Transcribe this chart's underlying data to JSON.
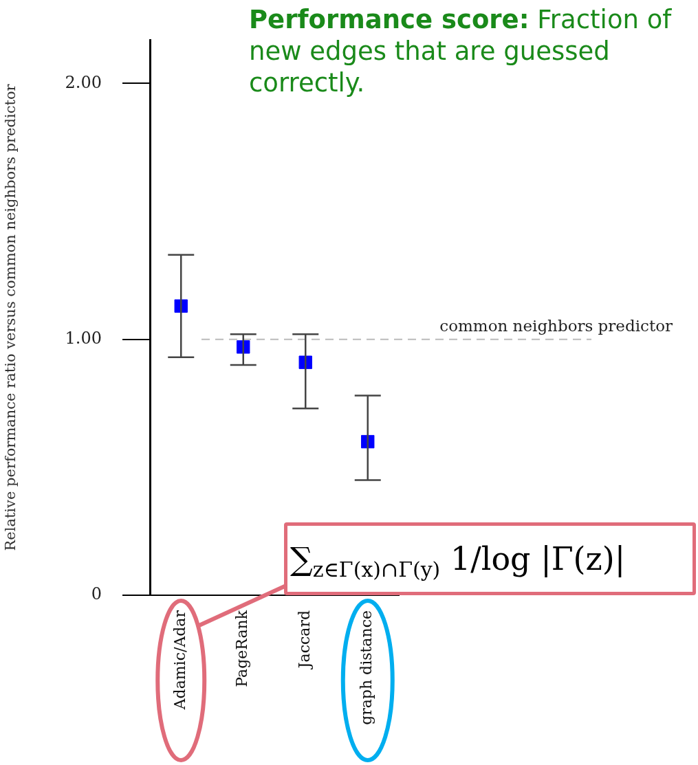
{
  "chart_data": {
    "type": "scatter",
    "categories": [
      "Adamic/Adar",
      "PageRank",
      "Jaccard",
      "graph distance"
    ],
    "values": [
      1.13,
      0.97,
      0.91,
      0.6
    ],
    "errors": [
      [
        0.93,
        1.33
      ],
      [
        0.9,
        1.02
      ],
      [
        0.73,
        1.02
      ],
      [
        0.45,
        0.78
      ]
    ],
    "color": "#0000ff",
    "marker": "square",
    "ylabel": "Relative performance ratio versus common neighbors predictor",
    "ylim": [
      0,
      2.17
    ],
    "yticks": [
      {
        "value": 0,
        "label": "0"
      },
      {
        "value": 1,
        "label": "1.00"
      },
      {
        "value": 2,
        "label": "2.00"
      }
    ],
    "ref_lines": [
      {
        "axis": "y",
        "value": 1,
        "label": "common neighbors predictor",
        "color": "#bbbbbb",
        "line_style": "dashed"
      }
    ],
    "annotations": [
      "Performance score: Fraction of new edges that are guessed correctly.",
      "∑$_{z∈Γ(x)∩Γ(y)}$ 1/log |Γ(z)|"
    ],
    "grid": false,
    "legend": false
  }
}
